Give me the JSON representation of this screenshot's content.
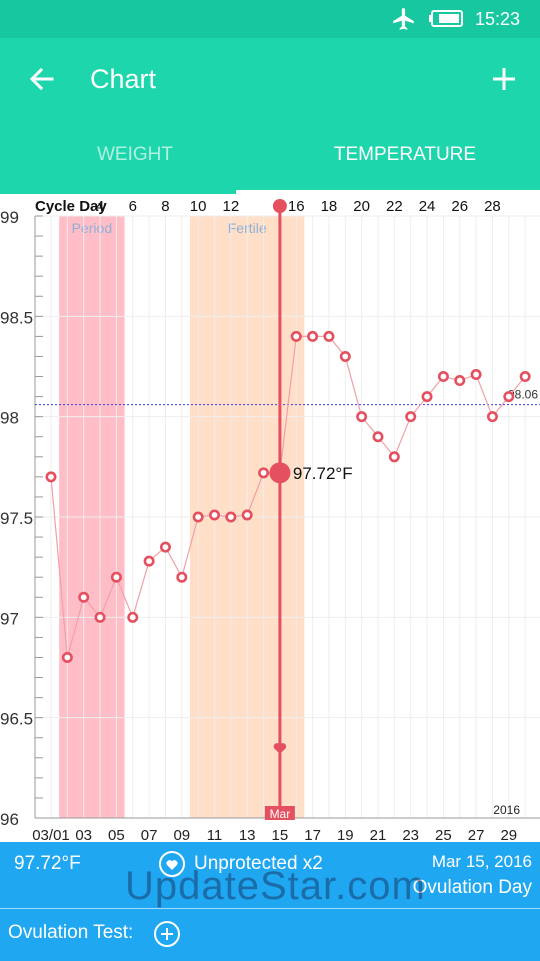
{
  "status_bar": {
    "time": "15:23",
    "icons": [
      "airplane-icon",
      "battery-icon"
    ]
  },
  "app_bar": {
    "title": "Chart",
    "back_icon": "arrow-left-icon",
    "add_icon": "plus-icon"
  },
  "tabs": [
    {
      "label": "WEIGHT",
      "selected": false
    },
    {
      "label": "TEMPERATURE",
      "selected": true
    }
  ],
  "colors": {
    "accent": "#1dd6ab",
    "status": "#17c7a0",
    "info": "#1fa7f2",
    "point": "#e5505f",
    "period": "#ffb3bd",
    "fertile": "#ffd9bd",
    "ovulation": "#e5505f"
  },
  "chart_data": {
    "type": "line",
    "cycle_day_label": "Cycle Day",
    "cycle_day_ticks": [
      "4",
      "6",
      "8",
      "10",
      "12",
      "16",
      "18",
      "20",
      "22",
      "24",
      "26",
      "28"
    ],
    "date_ticks": [
      "03/01",
      "03",
      "05",
      "07",
      "09",
      "11",
      "13",
      "15",
      "17",
      "19",
      "21",
      "23",
      "25",
      "27",
      "29"
    ],
    "ylim": [
      96,
      99
    ],
    "y_ticks": [
      "96",
      "96.5",
      "97",
      "97.5",
      "98",
      "98.5",
      "99"
    ],
    "x": [
      "03/01",
      "03/02",
      "03/03",
      "03/04",
      "03/05",
      "03/06",
      "03/07",
      "03/08",
      "03/09",
      "03/10",
      "03/11",
      "03/12",
      "03/13",
      "03/14",
      "03/15",
      "03/16",
      "03/17",
      "03/18",
      "03/19",
      "03/20",
      "03/21",
      "03/22",
      "03/23",
      "03/24",
      "03/25",
      "03/26",
      "03/27",
      "03/28",
      "03/29",
      "03/30"
    ],
    "values": [
      97.7,
      96.8,
      97.1,
      97.0,
      97.2,
      97.0,
      97.28,
      97.35,
      97.2,
      97.5,
      97.51,
      97.5,
      97.51,
      97.72,
      97.72,
      98.4,
      98.4,
      98.4,
      98.3,
      98.0,
      97.9,
      97.8,
      98.0,
      98.1,
      98.2,
      98.18,
      98.21,
      98.0,
      98.1,
      98.2
    ],
    "coverline": {
      "value": 98.06,
      "label": "98.06"
    },
    "bands": [
      {
        "label": "Period",
        "from": "03/02",
        "to": "03/05"
      },
      {
        "label": "Fertile",
        "from": "03/10",
        "to": "03/16"
      }
    ],
    "selected": {
      "date": "03/15",
      "label": "97.72°F",
      "month_label": "Mar"
    },
    "year_label": "2016"
  },
  "info_bar": {
    "temperature": "97.72°F",
    "intercourse": "Unprotected x2",
    "date": "Mar 15, 2016",
    "ovulation": "Ovulation Day"
  },
  "ovulation_test": {
    "label": "Ovulation Test:"
  },
  "watermark": "UpdateStar.com"
}
